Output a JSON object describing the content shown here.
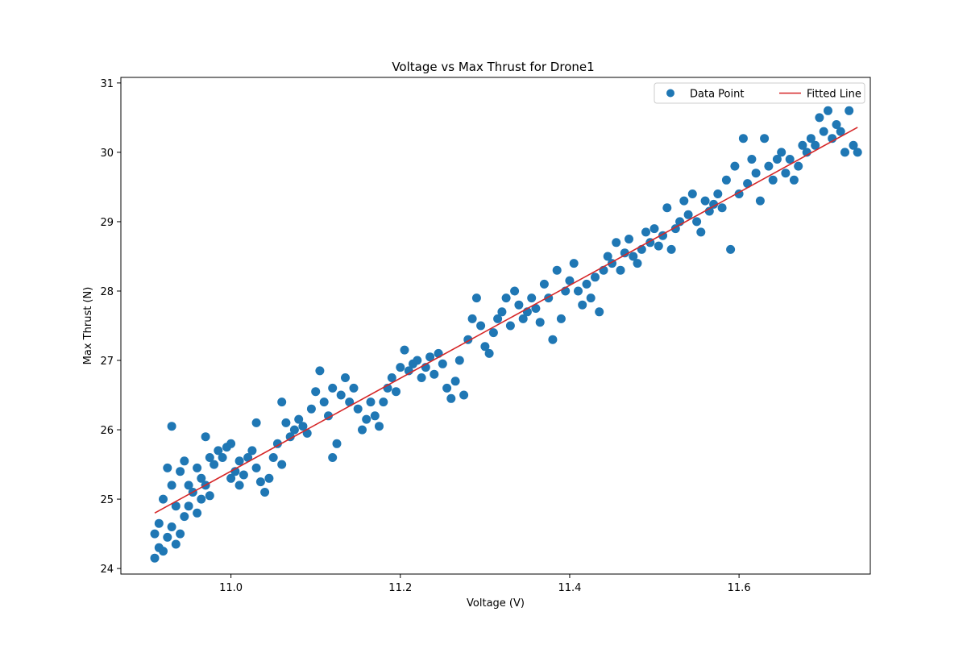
{
  "chart_data": {
    "type": "scatter",
    "title": "Voltage vs Max Thrust for Drone1",
    "xlabel": "Voltage (V)",
    "ylabel": "Max Thrust (N)",
    "xlim": [
      10.87,
      11.755
    ],
    "ylim": [
      23.92,
      31.08
    ],
    "xticks": [
      11.0,
      11.2,
      11.4,
      11.6
    ],
    "xtick_labels": [
      "11.0",
      "11.2",
      "11.4",
      "11.6"
    ],
    "yticks": [
      24,
      25,
      26,
      27,
      28,
      29,
      30,
      31
    ],
    "ytick_labels": [
      "24",
      "25",
      "26",
      "27",
      "28",
      "29",
      "30",
      "31"
    ],
    "grid": false,
    "legend": {
      "placement": "top-right",
      "entries": [
        {
          "label": "Data Point",
          "kind": "marker",
          "color": "#1f77b4"
        },
        {
          "label": "Fitted Line",
          "kind": "line",
          "color": "#d62728"
        }
      ]
    },
    "series": [
      {
        "name": "Data Point",
        "kind": "scatter",
        "color": "#1f77b4",
        "points": [
          [
            10.91,
            24.15
          ],
          [
            10.91,
            24.5
          ],
          [
            10.915,
            24.3
          ],
          [
            10.915,
            24.65
          ],
          [
            10.92,
            24.25
          ],
          [
            10.92,
            25.0
          ],
          [
            10.925,
            24.45
          ],
          [
            10.925,
            25.45
          ],
          [
            10.93,
            24.6
          ],
          [
            10.93,
            26.05
          ],
          [
            10.93,
            25.2
          ],
          [
            10.935,
            24.35
          ],
          [
            10.935,
            24.9
          ],
          [
            10.94,
            24.5
          ],
          [
            10.94,
            25.4
          ],
          [
            10.945,
            24.75
          ],
          [
            10.945,
            25.55
          ],
          [
            10.95,
            24.9
          ],
          [
            10.95,
            25.2
          ],
          [
            10.955,
            25.1
          ],
          [
            10.96,
            24.8
          ],
          [
            10.96,
            25.45
          ],
          [
            10.965,
            25.0
          ],
          [
            10.965,
            25.3
          ],
          [
            10.97,
            25.2
          ],
          [
            10.97,
            25.9
          ],
          [
            10.975,
            25.05
          ],
          [
            10.975,
            25.6
          ],
          [
            10.98,
            25.5
          ],
          [
            10.985,
            25.7
          ],
          [
            10.99,
            25.6
          ],
          [
            10.995,
            25.75
          ],
          [
            11.0,
            25.3
          ],
          [
            11.0,
            25.8
          ],
          [
            11.005,
            25.4
          ],
          [
            11.01,
            25.2
          ],
          [
            11.01,
            25.55
          ],
          [
            11.015,
            25.35
          ],
          [
            11.02,
            25.6
          ],
          [
            11.025,
            25.7
          ],
          [
            11.03,
            25.45
          ],
          [
            11.03,
            26.1
          ],
          [
            11.035,
            25.25
          ],
          [
            11.04,
            25.1
          ],
          [
            11.045,
            25.3
          ],
          [
            11.05,
            25.6
          ],
          [
            11.055,
            25.8
          ],
          [
            11.06,
            25.5
          ],
          [
            11.06,
            26.4
          ],
          [
            11.065,
            26.1
          ],
          [
            11.07,
            25.9
          ],
          [
            11.075,
            26.0
          ],
          [
            11.08,
            26.15
          ],
          [
            11.085,
            26.05
          ],
          [
            11.09,
            25.95
          ],
          [
            11.095,
            26.3
          ],
          [
            11.1,
            26.55
          ],
          [
            11.105,
            26.85
          ],
          [
            11.11,
            26.4
          ],
          [
            11.115,
            26.2
          ],
          [
            11.12,
            25.6
          ],
          [
            11.12,
            26.6
          ],
          [
            11.125,
            25.8
          ],
          [
            11.13,
            26.5
          ],
          [
            11.135,
            26.75
          ],
          [
            11.14,
            26.4
          ],
          [
            11.145,
            26.6
          ],
          [
            11.15,
            26.3
          ],
          [
            11.155,
            26.0
          ],
          [
            11.16,
            26.15
          ],
          [
            11.165,
            26.4
          ],
          [
            11.17,
            26.2
          ],
          [
            11.175,
            26.05
          ],
          [
            11.18,
            26.4
          ],
          [
            11.185,
            26.6
          ],
          [
            11.19,
            26.75
          ],
          [
            11.195,
            26.55
          ],
          [
            11.2,
            26.9
          ],
          [
            11.205,
            27.15
          ],
          [
            11.21,
            26.85
          ],
          [
            11.215,
            26.95
          ],
          [
            11.22,
            27.0
          ],
          [
            11.225,
            26.75
          ],
          [
            11.23,
            26.9
          ],
          [
            11.235,
            27.05
          ],
          [
            11.24,
            26.8
          ],
          [
            11.245,
            27.1
          ],
          [
            11.25,
            26.95
          ],
          [
            11.255,
            26.6
          ],
          [
            11.26,
            26.45
          ],
          [
            11.265,
            26.7
          ],
          [
            11.27,
            27.0
          ],
          [
            11.275,
            26.5
          ],
          [
            11.28,
            27.3
          ],
          [
            11.285,
            27.6
          ],
          [
            11.29,
            27.9
          ],
          [
            11.295,
            27.5
          ],
          [
            11.3,
            27.2
          ],
          [
            11.305,
            27.1
          ],
          [
            11.31,
            27.4
          ],
          [
            11.315,
            27.6
          ],
          [
            11.32,
            27.7
          ],
          [
            11.325,
            27.9
          ],
          [
            11.33,
            27.5
          ],
          [
            11.335,
            28.0
          ],
          [
            11.34,
            27.8
          ],
          [
            11.345,
            27.6
          ],
          [
            11.35,
            27.7
          ],
          [
            11.355,
            27.9
          ],
          [
            11.36,
            27.75
          ],
          [
            11.365,
            27.55
          ],
          [
            11.37,
            28.1
          ],
          [
            11.375,
            27.9
          ],
          [
            11.38,
            27.3
          ],
          [
            11.385,
            28.3
          ],
          [
            11.39,
            27.6
          ],
          [
            11.395,
            28.0
          ],
          [
            11.4,
            28.15
          ],
          [
            11.405,
            28.4
          ],
          [
            11.41,
            28.0
          ],
          [
            11.415,
            27.8
          ],
          [
            11.42,
            28.1
          ],
          [
            11.425,
            27.9
          ],
          [
            11.43,
            28.2
          ],
          [
            11.435,
            27.7
          ],
          [
            11.44,
            28.3
          ],
          [
            11.445,
            28.5
          ],
          [
            11.45,
            28.4
          ],
          [
            11.455,
            28.7
          ],
          [
            11.46,
            28.3
          ],
          [
            11.465,
            28.55
          ],
          [
            11.47,
            28.75
          ],
          [
            11.475,
            28.5
          ],
          [
            11.48,
            28.4
          ],
          [
            11.485,
            28.6
          ],
          [
            11.49,
            28.85
          ],
          [
            11.495,
            28.7
          ],
          [
            11.5,
            28.9
          ],
          [
            11.505,
            28.65
          ],
          [
            11.51,
            28.8
          ],
          [
            11.515,
            29.2
          ],
          [
            11.52,
            28.6
          ],
          [
            11.525,
            28.9
          ],
          [
            11.53,
            29.0
          ],
          [
            11.535,
            29.3
          ],
          [
            11.54,
            29.1
          ],
          [
            11.545,
            29.4
          ],
          [
            11.55,
            29.0
          ],
          [
            11.555,
            28.85
          ],
          [
            11.56,
            29.3
          ],
          [
            11.565,
            29.15
          ],
          [
            11.57,
            29.25
          ],
          [
            11.575,
            29.4
          ],
          [
            11.58,
            29.2
          ],
          [
            11.585,
            29.6
          ],
          [
            11.59,
            28.6
          ],
          [
            11.595,
            29.8
          ],
          [
            11.6,
            29.4
          ],
          [
            11.605,
            30.2
          ],
          [
            11.61,
            29.55
          ],
          [
            11.615,
            29.9
          ],
          [
            11.62,
            29.7
          ],
          [
            11.625,
            29.3
          ],
          [
            11.63,
            30.2
          ],
          [
            11.635,
            29.8
          ],
          [
            11.64,
            29.6
          ],
          [
            11.645,
            29.9
          ],
          [
            11.65,
            30.0
          ],
          [
            11.655,
            29.7
          ],
          [
            11.66,
            29.9
          ],
          [
            11.665,
            29.6
          ],
          [
            11.67,
            29.8
          ],
          [
            11.675,
            30.1
          ],
          [
            11.68,
            30.0
          ],
          [
            11.685,
            30.2
          ],
          [
            11.69,
            30.1
          ],
          [
            11.695,
            30.5
          ],
          [
            11.7,
            30.3
          ],
          [
            11.705,
            30.6
          ],
          [
            11.71,
            30.2
          ],
          [
            11.715,
            30.4
          ],
          [
            11.72,
            30.3
          ],
          [
            11.725,
            30.0
          ],
          [
            11.73,
            30.6
          ],
          [
            11.735,
            30.1
          ],
          [
            11.74,
            30.0
          ]
        ]
      },
      {
        "name": "Fitted Line",
        "kind": "line",
        "color": "#d62728",
        "points": [
          [
            10.91,
            24.8
          ],
          [
            11.74,
            30.36
          ]
        ]
      }
    ]
  }
}
